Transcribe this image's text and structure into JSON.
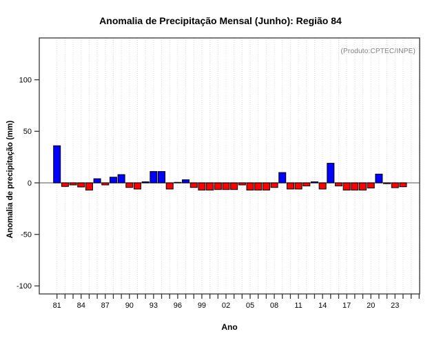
{
  "chart": {
    "title": "Anomalia de Precipitação Mensal (Junho): Região 84",
    "note": "(Produto:CPTEC/INPE)",
    "xlabel": "Ano",
    "ylabel": "Anomalia de precipitação (mm)"
  },
  "chart_data": {
    "type": "bar",
    "title": "Anomalia de Precipitação Mensal (Junho): Região 84",
    "annotation": "(Produto:CPTEC/INPE)",
    "xlabel": "Ano",
    "ylabel": "Anomalia de precipitação (mm)",
    "categories": [
      "1981",
      "1982",
      "1983",
      "1984",
      "1985",
      "1986",
      "1987",
      "1988",
      "1989",
      "1990",
      "1991",
      "1992",
      "1993",
      "1994",
      "1995",
      "1996",
      "1997",
      "1998",
      "1999",
      "2000",
      "2001",
      "2002",
      "2003",
      "2004",
      "2005",
      "2006",
      "2007",
      "2008",
      "2009",
      "2010",
      "2011",
      "2012",
      "2013",
      "2014",
      "2015",
      "2016",
      "2017",
      "2018",
      "2019",
      "2020",
      "2021",
      "2022",
      "2023",
      "2024"
    ],
    "values": [
      36,
      -3.5,
      -2,
      -4,
      -7,
      4,
      -2,
      5.5,
      8,
      -4.5,
      -6,
      1,
      11,
      11,
      -6,
      0.5,
      3,
      -4.5,
      -7,
      -7,
      -6.5,
      -6.5,
      -6.5,
      -2,
      -7,
      -7,
      -7,
      -4.5,
      10,
      -6,
      -6,
      -3,
      1,
      -6,
      19,
      -3,
      -7,
      -7,
      -7,
      -5,
      8.5,
      -0.8,
      -4.7,
      -3.8
    ],
    "x_tick_labels": [
      "81",
      "84",
      "87",
      "90",
      "93",
      "96",
      "99",
      "02",
      "05",
      "08",
      "11",
      "14",
      "17",
      "20",
      "23"
    ],
    "x_label_every": 3,
    "y_ticks": [
      100,
      50,
      0,
      -50,
      -100
    ],
    "y_tick_labels": [
      "100",
      "50",
      "0",
      "-50",
      "-100"
    ],
    "ylim": [
      -108,
      140
    ],
    "grid": "vertical-dotted",
    "legend": null,
    "colors": {
      "positive": "#0000ff",
      "negative": "#ff0000",
      "bar_border": "#000000",
      "grid": "#d9d9d9",
      "zero_line": "#8a8a8a",
      "frame": "#333333",
      "note": "#7f7f7f",
      "text": "#000000"
    }
  }
}
